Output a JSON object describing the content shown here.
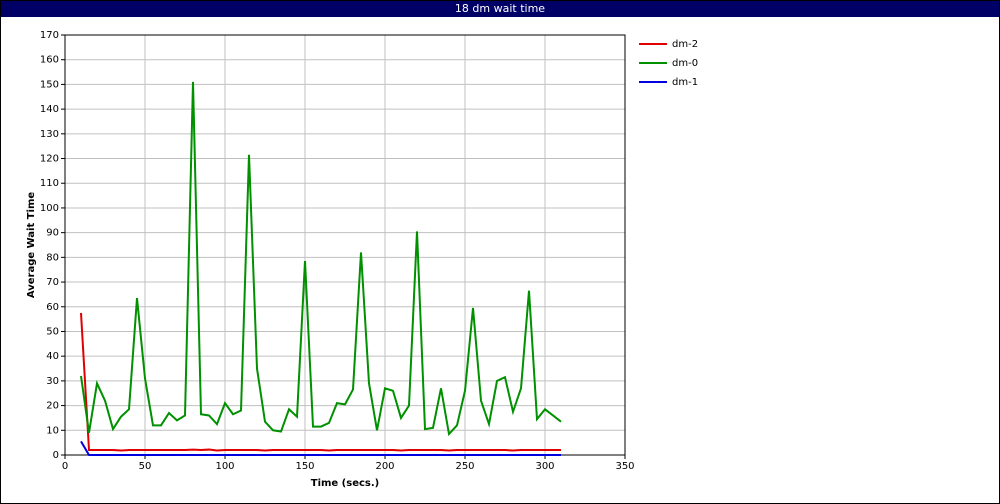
{
  "chart_data": {
    "type": "line",
    "title": "18 dm wait time",
    "x_label": "Time (secs.)",
    "y_label": "Average Wait Time",
    "x": [
      10,
      15,
      20,
      25,
      30,
      35,
      40,
      45,
      50,
      55,
      60,
      65,
      70,
      75,
      80,
      85,
      90,
      95,
      100,
      105,
      110,
      115,
      120,
      125,
      130,
      135,
      140,
      145,
      150,
      155,
      160,
      165,
      170,
      175,
      180,
      185,
      190,
      195,
      200,
      205,
      210,
      215,
      220,
      225,
      230,
      235,
      240,
      245,
      250,
      255,
      260,
      265,
      270,
      275,
      280,
      285,
      290,
      295,
      300,
      305,
      310
    ],
    "series": [
      {
        "name": "dm-2",
        "color": "#e00000",
        "values": [
          57.5,
          2,
          2,
          2,
          2,
          1.8,
          2,
          2,
          2,
          2,
          2,
          2,
          2,
          2,
          2.2,
          2,
          2.2,
          1.8,
          2,
          2,
          2,
          2,
          2,
          1.8,
          2,
          2,
          2,
          2,
          2,
          2,
          2,
          1.8,
          2,
          2,
          2,
          2,
          2,
          2,
          2,
          2,
          1.8,
          2,
          2,
          2,
          2,
          2,
          1.8,
          2,
          2,
          2,
          2,
          2,
          2,
          2,
          1.8,
          2,
          2,
          2,
          2,
          2,
          2
        ]
      },
      {
        "name": "dm-0",
        "color": "#009000",
        "values": [
          32,
          9,
          29,
          22,
          10.5,
          15.5,
          18.5,
          63.5,
          31,
          12,
          12,
          17,
          14,
          16,
          151,
          16.5,
          16,
          12.5,
          21,
          16.5,
          18,
          121.5,
          35,
          13.5,
          10,
          9.5,
          18.5,
          15.5,
          78.5,
          11.5,
          11.5,
          13,
          21,
          20.5,
          26.5,
          82,
          29,
          10,
          27,
          26,
          15,
          20,
          90.5,
          10.5,
          11,
          27,
          8.5,
          12,
          26,
          59.5,
          22,
          12.5,
          30,
          31.5,
          17.5,
          27,
          66.5,
          14.5,
          18.5,
          16,
          13.5
        ]
      },
      {
        "name": "dm-1",
        "color": "#0000e0",
        "values": [
          5.5,
          0,
          0,
          0,
          0,
          0,
          0,
          0,
          0,
          0,
          0,
          0,
          0,
          0,
          0,
          0,
          0,
          0,
          0,
          0,
          0,
          0,
          0,
          0,
          0,
          0,
          0,
          0,
          0,
          0,
          0,
          0,
          0,
          0,
          0,
          0,
          0,
          0,
          0,
          0,
          0,
          0,
          0,
          0,
          0,
          0,
          0,
          0,
          0,
          0,
          0,
          0,
          0,
          0,
          0,
          0,
          0,
          0,
          0,
          0,
          0
        ]
      }
    ],
    "xlim": [
      0,
      350
    ],
    "xticks": [
      0,
      50,
      100,
      150,
      200,
      250,
      300,
      350
    ],
    "ylim": [
      0,
      170
    ],
    "yticks": [
      0,
      10,
      20,
      30,
      40,
      50,
      60,
      70,
      80,
      90,
      100,
      110,
      120,
      130,
      140,
      150,
      160,
      170
    ],
    "grid": true,
    "legend": "right"
  }
}
